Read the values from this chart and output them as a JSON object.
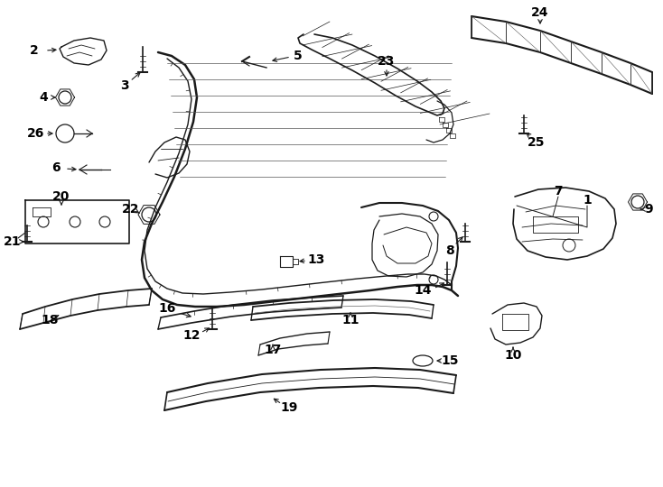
{
  "bg_color": "#ffffff",
  "line_color": "#1a1a1a",
  "figsize": [
    7.34,
    5.4
  ],
  "dpi": 100,
  "xlim": [
    0,
    734
  ],
  "ylim": [
    0,
    540
  ]
}
